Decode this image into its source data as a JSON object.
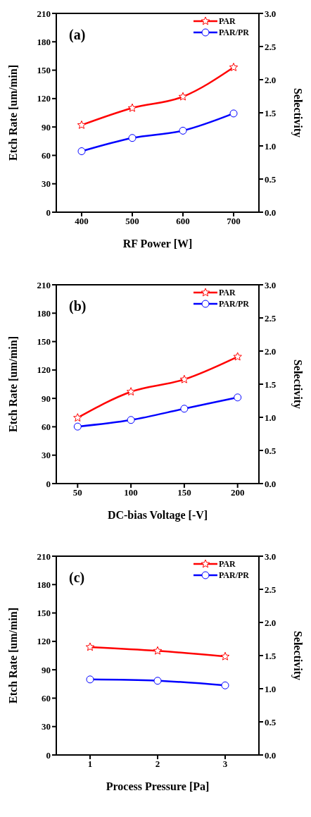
{
  "chart_data": [
    {
      "type": "line",
      "annotations": [
        "(a)"
      ],
      "xlabel": "RF Power [W]",
      "ylabel": "Etch Rate [um/min]",
      "y2label": "Selectivity",
      "x": [
        400,
        500,
        600,
        700
      ],
      "xlim": [
        350,
        750
      ],
      "xticks": [
        400,
        500,
        600,
        700
      ],
      "ylim": [
        0,
        210
      ],
      "yticks": [
        0,
        30,
        60,
        90,
        120,
        150,
        180,
        210
      ],
      "y2lim": [
        0,
        3
      ],
      "y2ticks": [
        {
          "value": 0,
          "label": "0.0"
        },
        0.5,
        {
          "value": 1,
          "label": "1.0"
        },
        1.5,
        {
          "value": 2,
          "label": "2.0"
        },
        2.5,
        {
          "value": 3,
          "label": "3.0"
        }
      ],
      "legend": "top right",
      "grid": false,
      "line_style": "solid",
      "series": [
        {
          "name": "PAR",
          "color": "#ff0000",
          "marker": "star",
          "values": [
            92,
            110,
            122,
            153
          ]
        },
        {
          "name": "PAR/PR",
          "color": "#0000ff",
          "marker": "circle",
          "axis": "y2",
          "values": [
            0.92,
            1.12,
            1.23,
            1.49
          ]
        }
      ]
    },
    {
      "type": "line",
      "annotations": [
        "(b)"
      ],
      "xlabel": "DC-bias Voltage [-V]",
      "ylabel": "Etch Rate [um/min]",
      "y2label": "Selectivity",
      "x": [
        50,
        100,
        150,
        200
      ],
      "xlim": [
        30,
        220
      ],
      "xticks": [
        50,
        100,
        150,
        200
      ],
      "ylim": [
        0,
        210
      ],
      "yticks": [
        0,
        30,
        60,
        90,
        120,
        150,
        180,
        210
      ],
      "y2lim": [
        0,
        3
      ],
      "y2ticks": [
        {
          "value": 0,
          "label": "0.0"
        },
        0.5,
        {
          "value": 1,
          "label": "1.0"
        },
        1.5,
        {
          "value": 2,
          "label": "2.0"
        },
        2.5,
        {
          "value": 3,
          "label": "3.0"
        }
      ],
      "legend": "top right",
      "grid": false,
      "line_style": "solid",
      "series": [
        {
          "name": "PAR",
          "color": "#ff0000",
          "marker": "star",
          "values": [
            69.5,
            97,
            110,
            134
          ]
        },
        {
          "name": "PAR/PR",
          "color": "#0000ff",
          "marker": "circle",
          "axis": "y2",
          "values": [
            0.86,
            0.96,
            1.13,
            1.3
          ]
        }
      ]
    },
    {
      "type": "line",
      "annotations": [
        "(c)"
      ],
      "xlabel": "Process Pressure [Pa]",
      "ylabel": "Etch Rate [um/min]",
      "y2label": "Selectivity",
      "x": [
        1,
        2,
        3
      ],
      "xlim": [
        0.5,
        3.5
      ],
      "xticks": [
        1,
        2,
        3
      ],
      "ylim": [
        0,
        210
      ],
      "yticks": [
        0,
        30,
        60,
        90,
        120,
        150,
        180,
        210
      ],
      "y2lim": [
        0,
        3
      ],
      "y2ticks": [
        {
          "value": 0,
          "label": "0.0"
        },
        0.5,
        {
          "value": 1,
          "label": "1.0"
        },
        1.5,
        {
          "value": 2,
          "label": "2.0"
        },
        2.5,
        {
          "value": 3,
          "label": "3.0"
        }
      ],
      "legend": "top right",
      "grid": false,
      "line_style": "solid",
      "series": [
        {
          "name": "PAR",
          "color": "#ff0000",
          "marker": "star",
          "values": [
            114,
            110,
            104
          ]
        },
        {
          "name": "PAR/PR",
          "color": "#0000ff",
          "marker": "circle",
          "axis": "y2",
          "values": [
            1.14,
            1.12,
            1.05
          ]
        }
      ]
    }
  ]
}
